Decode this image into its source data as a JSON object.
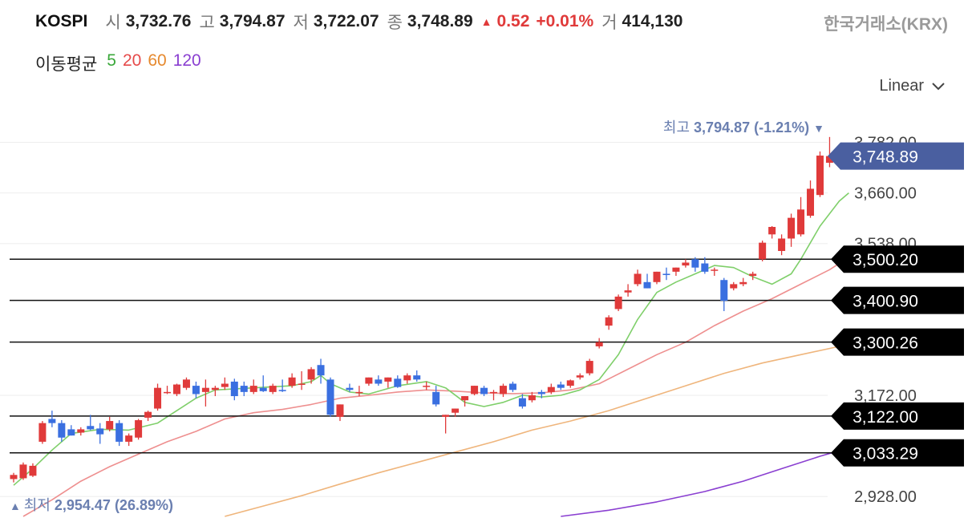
{
  "header": {
    "symbol": "KOSPI",
    "open_label": "시",
    "open": "3,732.76",
    "high_label": "고",
    "high": "3,794.87",
    "low_label": "저",
    "low": "3,722.07",
    "close_label": "종",
    "close": "3,748.89",
    "change": "0.52",
    "change_pct": "+0.01%",
    "volume_label": "거",
    "volume": "414,130",
    "exchange": "한국거래소(KRX)"
  },
  "moving_average": {
    "label": "이동평균",
    "periods": [
      {
        "label": "5",
        "color": "#3aa83a"
      },
      {
        "label": "20",
        "color": "#e64a4a"
      },
      {
        "label": "60",
        "color": "#e6892e"
      },
      {
        "label": "120",
        "color": "#8a3fd1"
      }
    ]
  },
  "scale_selector": {
    "label": "Linear",
    "icon": "chevron-down-icon"
  },
  "colors": {
    "up": "#e03a3a",
    "down": "#3a6fe0",
    "badge": "#4a5fa0",
    "annotation": "#6a7fb0"
  },
  "chart_data": {
    "type": "candlestick",
    "y_axis": {
      "min": 2880,
      "max": 3810,
      "ticks": [
        3782.0,
        3660.0,
        3538.0,
        3172.0,
        2928.0
      ],
      "tick_labels": [
        "3,782.00",
        "3,660.00",
        "3,538.00",
        "3,172.00",
        "2,928.00"
      ]
    },
    "current_price": {
      "value": 3748.89,
      "label": "3,748.89"
    },
    "high_annotation": {
      "prefix": "최고",
      "value": "3,794.87 (-1.21%)"
    },
    "low_annotation": {
      "prefix": "최저",
      "value": "2,954.47 (26.89%)"
    },
    "horizontal_levels": [
      {
        "value": 3500.2,
        "label": "3,500.20"
      },
      {
        "value": 3400.9,
        "label": "3,400.90"
      },
      {
        "value": 3300.26,
        "label": "3,300.26"
      },
      {
        "value": 3122.0,
        "label": "3,122.00"
      },
      {
        "value": 3033.29,
        "label": "3,033.29"
      }
    ],
    "candles": [
      [
        2970,
        2985,
        2962,
        2980
      ],
      [
        2972,
        3010,
        2968,
        3005
      ],
      [
        2978,
        3008,
        2975,
        3002
      ],
      [
        3060,
        3110,
        3055,
        3105
      ],
      [
        3115,
        3135,
        3095,
        3105
      ],
      [
        3105,
        3112,
        3060,
        3070
      ],
      [
        3090,
        3100,
        3075,
        3075
      ],
      [
        3082,
        3095,
        3075,
        3090
      ],
      [
        3098,
        3125,
        3088,
        3090
      ],
      [
        3092,
        3105,
        3055,
        3078
      ],
      [
        3090,
        3120,
        3085,
        3110
      ],
      [
        3105,
        3112,
        3050,
        3060
      ],
      [
        3060,
        3080,
        3050,
        3075
      ],
      [
        3070,
        3115,
        3065,
        3112
      ],
      [
        3118,
        3135,
        3110,
        3132
      ],
      [
        3140,
        3200,
        3135,
        3190
      ],
      [
        3180,
        3195,
        3175,
        3180
      ],
      [
        3175,
        3200,
        3170,
        3198
      ],
      [
        3190,
        3215,
        3185,
        3210
      ],
      [
        3195,
        3205,
        3165,
        3175
      ],
      [
        3180,
        3210,
        3145,
        3190
      ],
      [
        3185,
        3195,
        3170,
        3190
      ],
      [
        3192,
        3215,
        3185,
        3200
      ],
      [
        3205,
        3212,
        3160,
        3170
      ],
      [
        3195,
        3205,
        3170,
        3180
      ],
      [
        3180,
        3210,
        3175,
        3195
      ],
      [
        3190,
        3220,
        3180,
        3182
      ],
      [
        3180,
        3200,
        3175,
        3195
      ],
      [
        3185,
        3210,
        3180,
        3182
      ],
      [
        3195,
        3225,
        3190,
        3215
      ],
      [
        3200,
        3230,
        3185,
        3200
      ],
      [
        3210,
        3240,
        3200,
        3235
      ],
      [
        3245,
        3260,
        3200,
        3220
      ],
      [
        3210,
        3215,
        3120,
        3125
      ],
      [
        3120,
        3150,
        3110,
        3150
      ],
      [
        3190,
        3200,
        3180,
        3185
      ],
      [
        3180,
        3195,
        3170,
        3180
      ],
      [
        3200,
        3215,
        3195,
        3215
      ],
      [
        3210,
        3220,
        3195,
        3200
      ],
      [
        3205,
        3215,
        3190,
        3215
      ],
      [
        3212,
        3220,
        3190,
        3192
      ],
      [
        3208,
        3225,
        3200,
        3220
      ],
      [
        3220,
        3232,
        3205,
        3210
      ],
      [
        3195,
        3205,
        3185,
        3195
      ],
      [
        3180,
        3195,
        3145,
        3150
      ],
      [
        3120,
        3125,
        3080,
        3125
      ],
      [
        3130,
        3140,
        3120,
        3140
      ],
      [
        3160,
        3170,
        3145,
        3170
      ],
      [
        3175,
        3195,
        3172,
        3195
      ],
      [
        3190,
        3195,
        3170,
        3175
      ],
      [
        3178,
        3185,
        3160,
        3180
      ],
      [
        3175,
        3200,
        3168,
        3195
      ],
      [
        3200,
        3205,
        3180,
        3185
      ],
      [
        3165,
        3175,
        3140,
        3145
      ],
      [
        3160,
        3180,
        3155,
        3172
      ],
      [
        3180,
        3185,
        3165,
        3175
      ],
      [
        3180,
        3200,
        3175,
        3192
      ],
      [
        3198,
        3205,
        3185,
        3190
      ],
      [
        3195,
        3210,
        3190,
        3208
      ],
      [
        3215,
        3225,
        3210,
        3220
      ],
      [
        3225,
        3260,
        3220,
        3255
      ],
      [
        3290,
        3310,
        3285,
        3300
      ],
      [
        3340,
        3365,
        3330,
        3360
      ],
      [
        3380,
        3415,
        3375,
        3410
      ],
      [
        3420,
        3440,
        3410,
        3425
      ],
      [
        3440,
        3475,
        3435,
        3465
      ],
      [
        3445,
        3465,
        3430,
        3430
      ],
      [
        3445,
        3470,
        3440,
        3470
      ],
      [
        3465,
        3480,
        3450,
        3462
      ],
      [
        3470,
        3480,
        3460,
        3480
      ],
      [
        3485,
        3500,
        3480,
        3492
      ],
      [
        3500,
        3505,
        3470,
        3480
      ],
      [
        3490,
        3505,
        3465,
        3470
      ],
      [
        3475,
        3480,
        3460,
        3475
      ],
      [
        3450,
        3455,
        3375,
        3400
      ],
      [
        3430,
        3445,
        3425,
        3440
      ],
      [
        3440,
        3455,
        3435,
        3445
      ],
      [
        3460,
        3470,
        3450,
        3465
      ],
      [
        3500,
        3545,
        3495,
        3540
      ],
      [
        3560,
        3580,
        3550,
        3578
      ],
      [
        3520,
        3560,
        3510,
        3550
      ],
      [
        3550,
        3610,
        3530,
        3600
      ],
      [
        3560,
        3650,
        3555,
        3620
      ],
      [
        3605,
        3690,
        3600,
        3670
      ],
      [
        3655,
        3760,
        3650,
        3750
      ],
      [
        3732.76,
        3794.87,
        3722.07,
        3748.89
      ]
    ],
    "ma5": [
      [
        0,
        2955
      ],
      [
        2,
        2995
      ],
      [
        4,
        3040
      ],
      [
        6,
        3080
      ],
      [
        9,
        3090
      ],
      [
        12,
        3088
      ],
      [
        15,
        3105
      ],
      [
        17,
        3135
      ],
      [
        19,
        3165
      ],
      [
        21,
        3185
      ],
      [
        25,
        3190
      ],
      [
        29,
        3195
      ],
      [
        31,
        3205
      ],
      [
        32,
        3220
      ],
      [
        33,
        3200
      ],
      [
        35,
        3180
      ],
      [
        37,
        3175
      ],
      [
        40,
        3195
      ],
      [
        43,
        3205
      ],
      [
        45,
        3190
      ],
      [
        47,
        3155
      ],
      [
        49,
        3145
      ],
      [
        51,
        3155
      ],
      [
        53,
        3172
      ],
      [
        55,
        3168
      ],
      [
        57,
        3172
      ],
      [
        59,
        3185
      ],
      [
        61,
        3210
      ],
      [
        63,
        3270
      ],
      [
        65,
        3355
      ],
      [
        67,
        3420
      ],
      [
        69,
        3445
      ],
      [
        71,
        3465
      ],
      [
        73,
        3485
      ],
      [
        75,
        3480
      ],
      [
        77,
        3458
      ],
      [
        79,
        3440
      ],
      [
        81,
        3465
      ],
      [
        82,
        3500
      ],
      [
        84,
        3580
      ],
      [
        86,
        3640
      ],
      [
        87,
        3660
      ]
    ],
    "ma20": [
      [
        1,
        2880
      ],
      [
        4,
        2920
      ],
      [
        7,
        2965
      ],
      [
        10,
        3000
      ],
      [
        13,
        3030
      ],
      [
        16,
        3060
      ],
      [
        19,
        3085
      ],
      [
        22,
        3115
      ],
      [
        25,
        3130
      ],
      [
        28,
        3138
      ],
      [
        31,
        3150
      ],
      [
        34,
        3165
      ],
      [
        37,
        3172
      ],
      [
        40,
        3180
      ],
      [
        43,
        3185
      ],
      [
        46,
        3182
      ],
      [
        49,
        3178
      ],
      [
        52,
        3176
      ],
      [
        55,
        3178
      ],
      [
        58,
        3185
      ],
      [
        61,
        3200
      ],
      [
        64,
        3235
      ],
      [
        67,
        3270
      ],
      [
        70,
        3300
      ],
      [
        73,
        3340
      ],
      [
        76,
        3375
      ],
      [
        79,
        3405
      ],
      [
        82,
        3440
      ],
      [
        85,
        3475
      ],
      [
        87,
        3505
      ]
    ],
    "ma60": [
      [
        22,
        2880
      ],
      [
        26,
        2905
      ],
      [
        30,
        2930
      ],
      [
        34,
        2958
      ],
      [
        38,
        2985
      ],
      [
        42,
        3010
      ],
      [
        46,
        3035
      ],
      [
        50,
        3060
      ],
      [
        54,
        3088
      ],
      [
        58,
        3110
      ],
      [
        62,
        3135
      ],
      [
        66,
        3165
      ],
      [
        70,
        3195
      ],
      [
        74,
        3225
      ],
      [
        78,
        3250
      ],
      [
        82,
        3270
      ],
      [
        86,
        3290
      ],
      [
        87,
        3300
      ]
    ],
    "ma120": [
      [
        57,
        2880
      ],
      [
        62,
        2895
      ],
      [
        67,
        2915
      ],
      [
        72,
        2940
      ],
      [
        76,
        2965
      ],
      [
        80,
        2995
      ],
      [
        84,
        3025
      ],
      [
        87,
        3045
      ]
    ]
  }
}
